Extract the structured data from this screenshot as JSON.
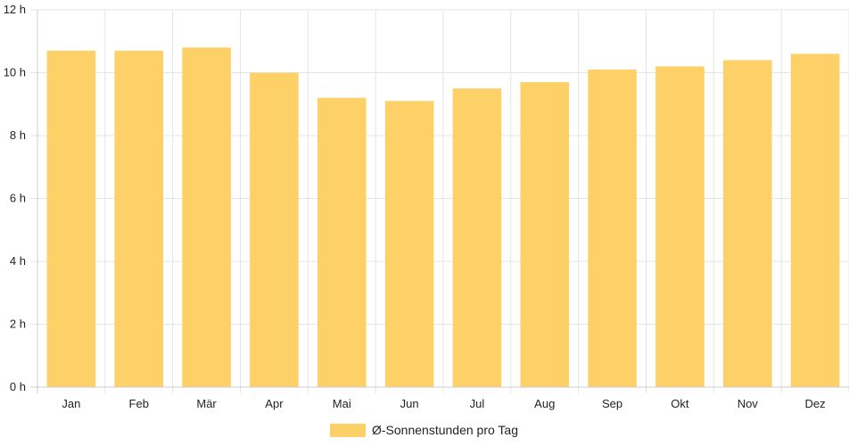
{
  "chart_data": {
    "type": "bar",
    "categories": [
      "Jan",
      "Feb",
      "Mär",
      "Apr",
      "Mai",
      "Jun",
      "Jul",
      "Aug",
      "Sep",
      "Okt",
      "Nov",
      "Dez"
    ],
    "series": [
      {
        "name": "Ø-Sonnenstunden pro Tag",
        "values": [
          10.7,
          10.7,
          10.8,
          10.0,
          9.2,
          9.1,
          9.5,
          9.7,
          10.1,
          10.2,
          10.4,
          10.6
        ],
        "color": "#fed068"
      }
    ],
    "y_ticks": [
      "0 h",
      "2 h",
      "4 h",
      "6 h",
      "8 h",
      "10 h",
      "12 h"
    ],
    "ylim": [
      0,
      12
    ],
    "grid": true,
    "legend_position": "bottom",
    "colors": {
      "grid": "#e5e5e5",
      "axis": "#cccccc"
    }
  }
}
